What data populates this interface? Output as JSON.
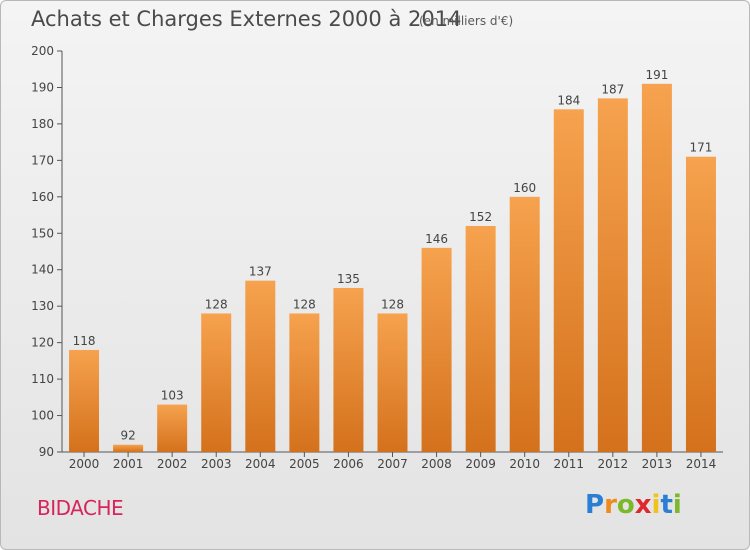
{
  "chart_data": {
    "type": "bar",
    "title": "Achats et Charges Externes 2000 à 2014",
    "subtitle": "(en milliers d'€)",
    "categories": [
      "2000",
      "2001",
      "2002",
      "2003",
      "2004",
      "2005",
      "2006",
      "2007",
      "2008",
      "2009",
      "2010",
      "2011",
      "2012",
      "2013",
      "2014"
    ],
    "values": [
      118,
      92,
      103,
      128,
      137,
      128,
      135,
      128,
      146,
      152,
      160,
      184,
      187,
      191,
      171
    ],
    "ylim": [
      90,
      200
    ],
    "yticks": [
      90,
      100,
      110,
      120,
      130,
      140,
      150,
      160,
      170,
      180,
      190,
      200
    ],
    "xlabel": "",
    "ylabel": "",
    "grid": false,
    "bar_color_light": "#f6a24e",
    "bar_color_dark": "#d4711c"
  },
  "footer": {
    "location": "BIDACHE",
    "brand_letters": [
      "P",
      "r",
      "o",
      "x",
      "i",
      "t",
      "i"
    ],
    "brand_colors": [
      "#2a7fd4",
      "#f08a1c",
      "#7bb82a",
      "#e0262e",
      "#f0c21c",
      "#2a7fd4",
      "#7bb82a"
    ]
  }
}
